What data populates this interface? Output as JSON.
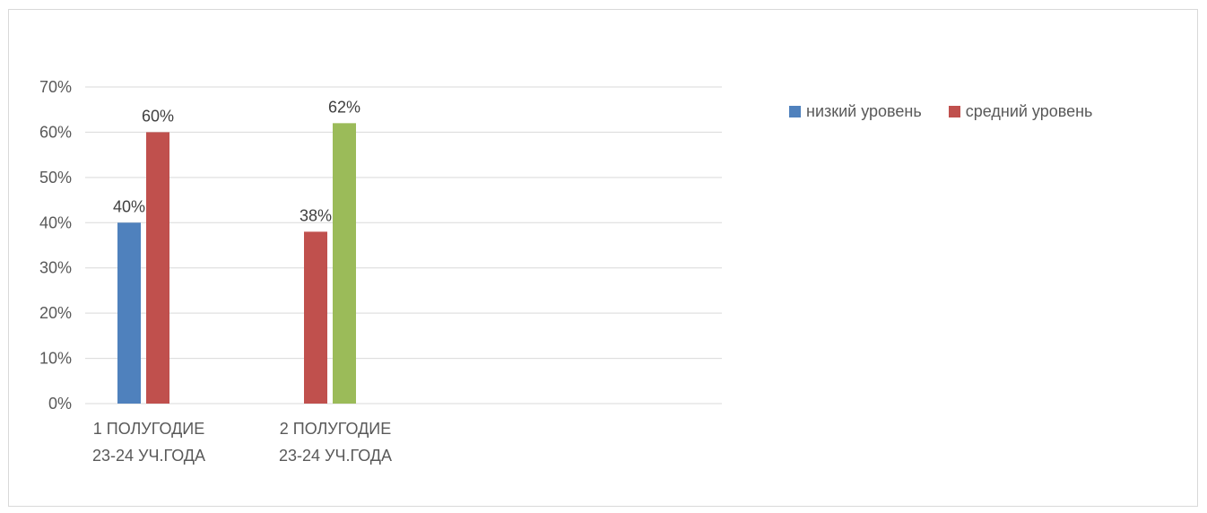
{
  "chart_data": {
    "type": "bar",
    "categories": [
      [
        "1 ПОЛУГОДИЕ",
        "23-24 УЧ.ГОДА"
      ],
      [
        "2 ПОЛУГОДИЕ",
        "23-24 УЧ.ГОДА"
      ]
    ],
    "ylim": [
      0,
      70
    ],
    "yticks": [
      "0%",
      "10%",
      "20%",
      "30%",
      "40%",
      "50%",
      "60%",
      "70%"
    ],
    "grid": true,
    "legend_position": "top-right",
    "bars": [
      [
        {
          "value": 40,
          "label": "40%",
          "color": "#4f81bd"
        },
        {
          "value": 60,
          "label": "60%",
          "color": "#c0504d"
        }
      ],
      [
        {
          "value": 38,
          "label": "38%",
          "color": "#c0504d"
        },
        {
          "value": 62,
          "label": "62%",
          "color": "#9bbb59"
        }
      ]
    ],
    "legend": [
      {
        "name": "низкий уровень",
        "color": "#4f81bd"
      },
      {
        "name": "средний уровень",
        "color": "#c0504d"
      }
    ]
  }
}
